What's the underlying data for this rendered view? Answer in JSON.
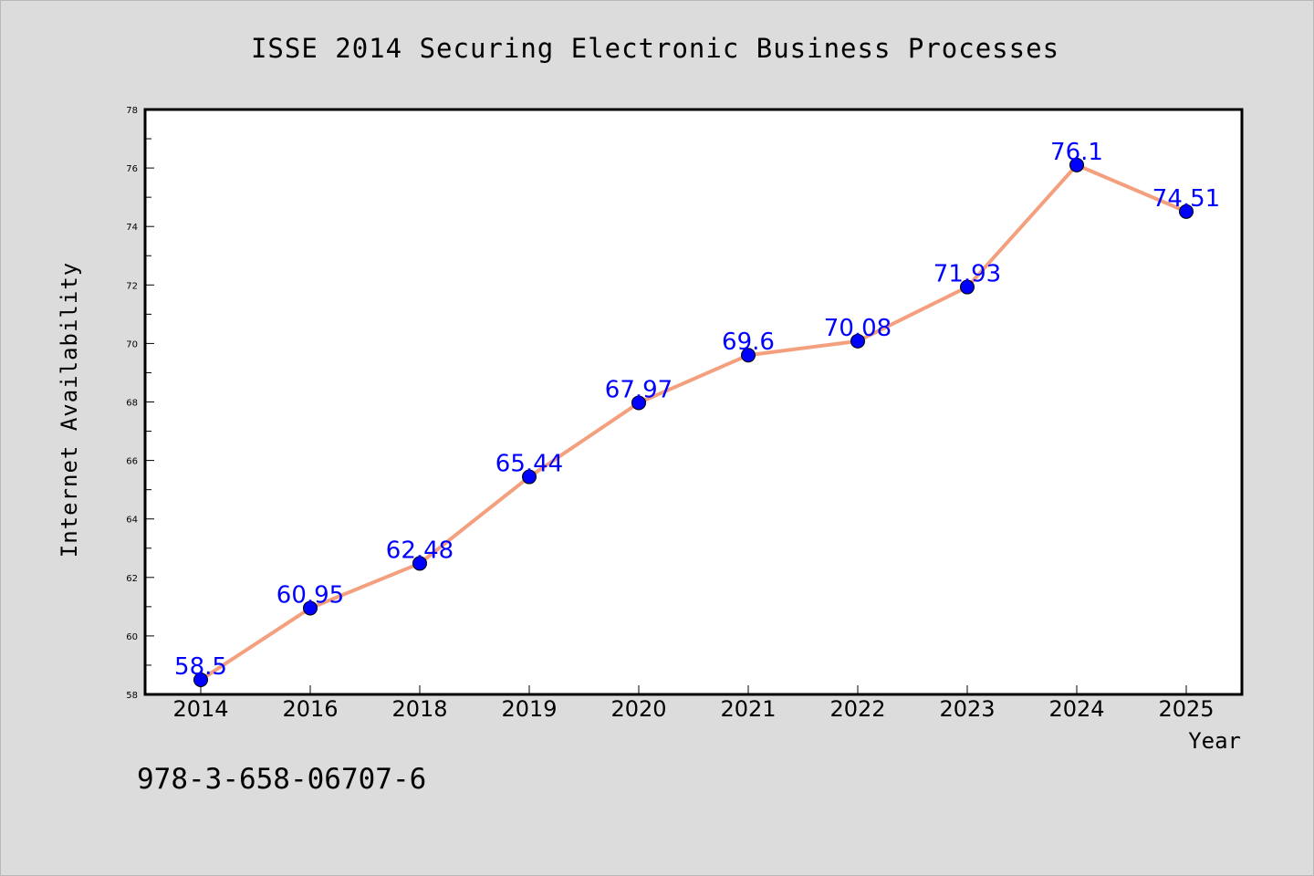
{
  "chart_data": {
    "type": "line",
    "title": "ISSE 2014 Securing Electronic Business Processes",
    "xlabel": "Year",
    "ylabel": "Internet Availability",
    "categories": [
      "2014",
      "2016",
      "2018",
      "2019",
      "2020",
      "2021",
      "2022",
      "2023",
      "2024",
      "2025"
    ],
    "series": [
      {
        "values": [
          58.5,
          60.95,
          62.48,
          65.44,
          67.97,
          69.6,
          70.08,
          71.93,
          76.1,
          74.51
        ],
        "labels": [
          "58.5",
          "60.95",
          "62.48",
          "65.44",
          "67.97",
          "69.6",
          "70.08",
          "71.93",
          "76.1",
          "74.51"
        ],
        "line_color": "#f4a07e",
        "marker_color": "#0000ff"
      }
    ],
    "ylim": [
      58,
      78
    ],
    "yticks": [
      58,
      60,
      62,
      64,
      66,
      68,
      70,
      72,
      74,
      76,
      78
    ],
    "grid": false,
    "legend": "none"
  },
  "footer": {
    "isbn": "978-3-658-06707-6"
  }
}
